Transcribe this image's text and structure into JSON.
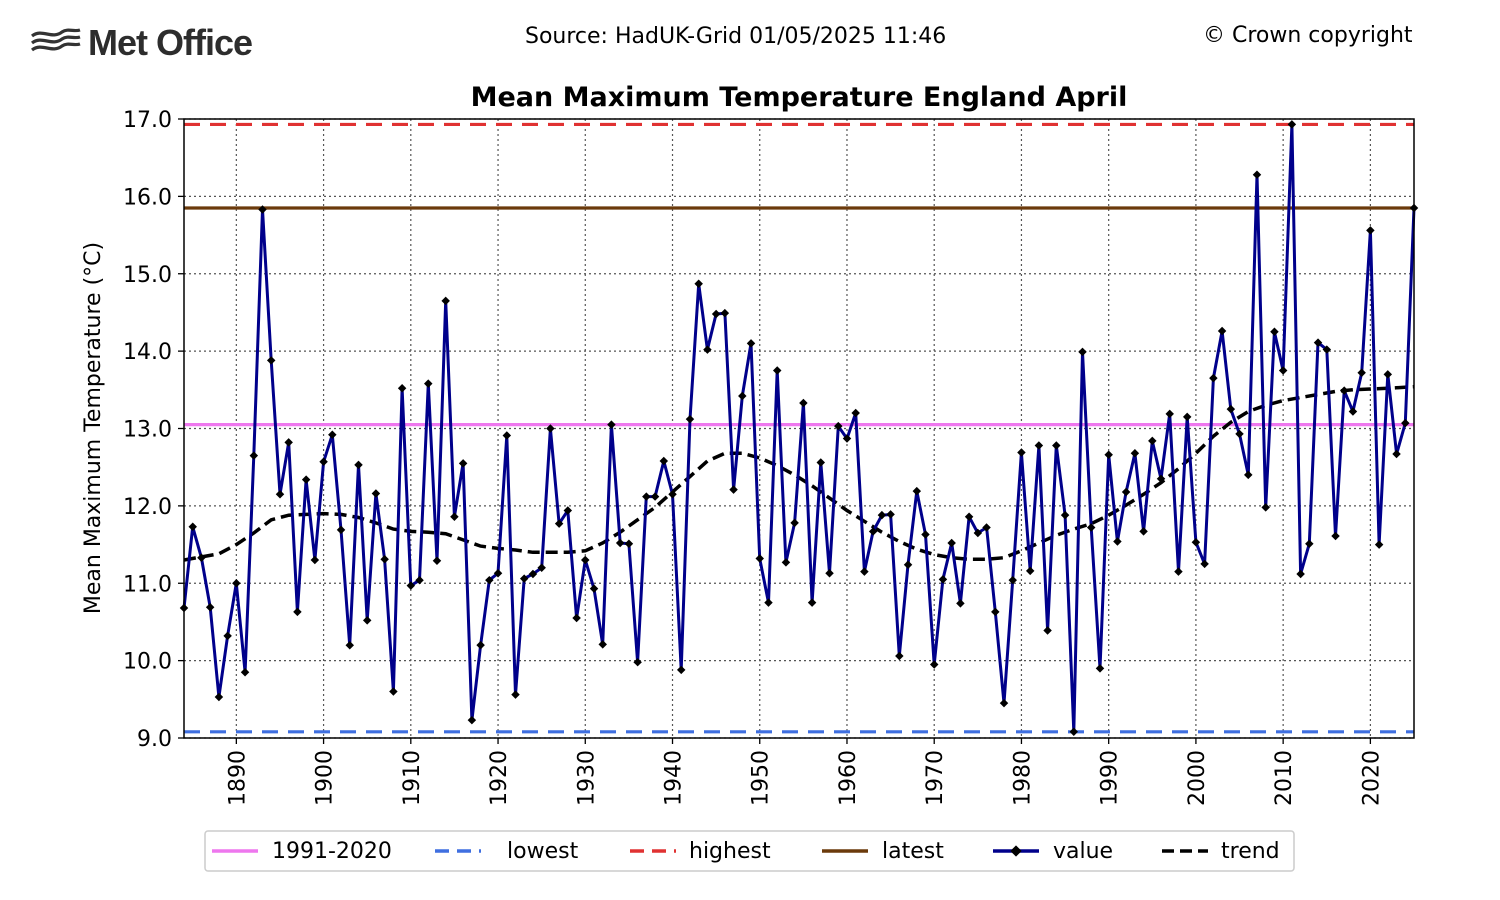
{
  "header": {
    "logo_text": "Met Office",
    "source": "Source: HadUK-Grid 01/05/2025 11:46",
    "copyright": "© Crown copyright"
  },
  "colors": {
    "average": "#ee77ee",
    "lowest": "#3f6fe0",
    "highest": "#e03232",
    "latest": "#6b3a0b",
    "value": "#00008b",
    "trend": "#000000",
    "grid": "#555555"
  },
  "chart_data": {
    "type": "line",
    "title": "Mean Maximum Temperature England April",
    "xlabel": "",
    "ylabel": "Mean Maximum Temperature (°C)",
    "xlim": [
      1884,
      2025
    ],
    "ylim": [
      9.0,
      17.0
    ],
    "xticks": [
      1890,
      1900,
      1910,
      1920,
      1930,
      1940,
      1950,
      1960,
      1970,
      1980,
      1990,
      2000,
      2010,
      2020
    ],
    "yticks": [
      "9.0",
      "10.0",
      "11.0",
      "12.0",
      "13.0",
      "14.0",
      "15.0",
      "16.0",
      "17.0"
    ],
    "grid": true,
    "legend_position": "bottom",
    "reference_lines": {
      "average": {
        "name": "1991-2020",
        "value": 13.05
      },
      "lowest": {
        "name": "lowest",
        "value": 9.08
      },
      "highest": {
        "name": "highest",
        "value": 16.93
      },
      "latest": {
        "name": "latest",
        "value": 15.85
      }
    },
    "series": [
      {
        "name": "value",
        "x": [
          1884,
          1885,
          1886,
          1887,
          1888,
          1889,
          1890,
          1891,
          1892,
          1893,
          1894,
          1895,
          1896,
          1897,
          1898,
          1899,
          1900,
          1901,
          1902,
          1903,
          1904,
          1905,
          1906,
          1907,
          1908,
          1909,
          1910,
          1911,
          1912,
          1913,
          1914,
          1915,
          1916,
          1917,
          1918,
          1919,
          1920,
          1921,
          1922,
          1923,
          1924,
          1925,
          1926,
          1927,
          1928,
          1929,
          1930,
          1931,
          1932,
          1933,
          1934,
          1935,
          1936,
          1937,
          1938,
          1939,
          1940,
          1941,
          1942,
          1943,
          1944,
          1945,
          1946,
          1947,
          1948,
          1949,
          1950,
          1951,
          1952,
          1953,
          1954,
          1955,
          1956,
          1957,
          1958,
          1959,
          1960,
          1961,
          1962,
          1963,
          1964,
          1965,
          1966,
          1967,
          1968,
          1969,
          1970,
          1971,
          1972,
          1973,
          1974,
          1975,
          1976,
          1977,
          1978,
          1979,
          1980,
          1981,
          1982,
          1983,
          1984,
          1985,
          1986,
          1987,
          1988,
          1989,
          1990,
          1991,
          1992,
          1993,
          1994,
          1995,
          1996,
          1997,
          1998,
          1999,
          2000,
          2001,
          2002,
          2003,
          2004,
          2005,
          2006,
          2007,
          2008,
          2009,
          2010,
          2011,
          2012,
          2013,
          2014,
          2015,
          2016,
          2017,
          2018,
          2019,
          2020,
          2021,
          2022,
          2023,
          2024,
          2025
        ],
        "values": [
          10.68,
          11.73,
          11.33,
          10.69,
          9.53,
          10.32,
          11.0,
          9.85,
          12.65,
          15.83,
          13.88,
          12.15,
          12.82,
          10.63,
          12.34,
          11.3,
          12.57,
          12.92,
          11.69,
          10.2,
          12.53,
          10.52,
          12.16,
          11.31,
          9.6,
          13.52,
          10.97,
          11.04,
          13.58,
          11.29,
          14.65,
          11.86,
          12.55,
          9.23,
          10.2,
          11.04,
          11.13,
          12.91,
          9.56,
          11.06,
          11.12,
          11.2,
          13.0,
          11.77,
          11.94,
          10.55,
          11.3,
          10.93,
          10.21,
          13.05,
          11.52,
          11.51,
          9.98,
          12.12,
          12.12,
          12.58,
          12.15,
          9.88,
          13.12,
          14.87,
          14.02,
          14.48,
          14.49,
          12.21,
          13.42,
          14.1,
          11.32,
          10.75,
          13.75,
          11.27,
          11.78,
          13.33,
          10.75,
          12.56,
          11.13,
          13.03,
          12.87,
          13.2,
          11.15,
          11.67,
          11.88,
          11.89,
          10.06,
          11.24,
          12.19,
          11.63,
          9.95,
          11.05,
          11.52,
          10.74,
          11.86,
          11.65,
          11.72,
          10.63,
          9.45,
          11.04,
          12.69,
          11.16,
          12.78,
          10.39,
          12.78,
          11.88,
          9.08,
          13.99,
          11.72,
          9.9,
          12.66,
          11.54,
          12.18,
          12.68,
          11.67,
          12.84,
          12.35,
          13.19,
          11.15,
          13.15,
          11.53,
          11.25,
          13.65,
          14.26,
          13.25,
          12.93,
          12.4,
          16.28,
          11.98,
          14.25,
          13.75,
          16.93,
          11.12,
          11.51,
          14.11,
          14.02,
          11.61,
          13.49,
          13.22,
          13.72,
          15.56,
          11.5,
          13.7,
          12.67,
          13.07,
          15.85
        ]
      },
      {
        "name": "trend",
        "x": [
          1884,
          1888,
          1890,
          1892,
          1894,
          1896,
          1898,
          1900,
          1902,
          1904,
          1906,
          1908,
          1910,
          1912,
          1914,
          1916,
          1918,
          1920,
          1922,
          1924,
          1926,
          1928,
          1930,
          1932,
          1934,
          1936,
          1938,
          1940,
          1942,
          1944,
          1946,
          1948,
          1950,
          1952,
          1954,
          1956,
          1958,
          1960,
          1962,
          1964,
          1966,
          1968,
          1970,
          1972,
          1974,
          1976,
          1978,
          1980,
          1982,
          1984,
          1986,
          1988,
          1990,
          1992,
          1994,
          1996,
          1998,
          2000,
          2002,
          2004,
          2006,
          2008,
          2010,
          2012,
          2014,
          2016,
          2018,
          2020,
          2022,
          2025
        ],
        "values": [
          11.3,
          11.38,
          11.5,
          11.65,
          11.82,
          11.88,
          11.89,
          11.9,
          11.89,
          11.85,
          11.78,
          11.7,
          11.67,
          11.66,
          11.64,
          11.56,
          11.48,
          11.45,
          11.43,
          11.4,
          11.4,
          11.4,
          11.42,
          11.52,
          11.66,
          11.82,
          11.98,
          12.18,
          12.38,
          12.58,
          12.68,
          12.68,
          12.62,
          12.52,
          12.4,
          12.26,
          12.1,
          11.94,
          11.8,
          11.66,
          11.54,
          11.44,
          11.37,
          11.33,
          11.31,
          11.31,
          11.33,
          11.42,
          11.52,
          11.62,
          11.7,
          11.77,
          11.88,
          12.01,
          12.15,
          12.3,
          12.48,
          12.68,
          12.9,
          13.08,
          13.22,
          13.3,
          13.36,
          13.4,
          13.44,
          13.48,
          13.5,
          13.51,
          13.52,
          13.54
        ]
      }
    ]
  }
}
